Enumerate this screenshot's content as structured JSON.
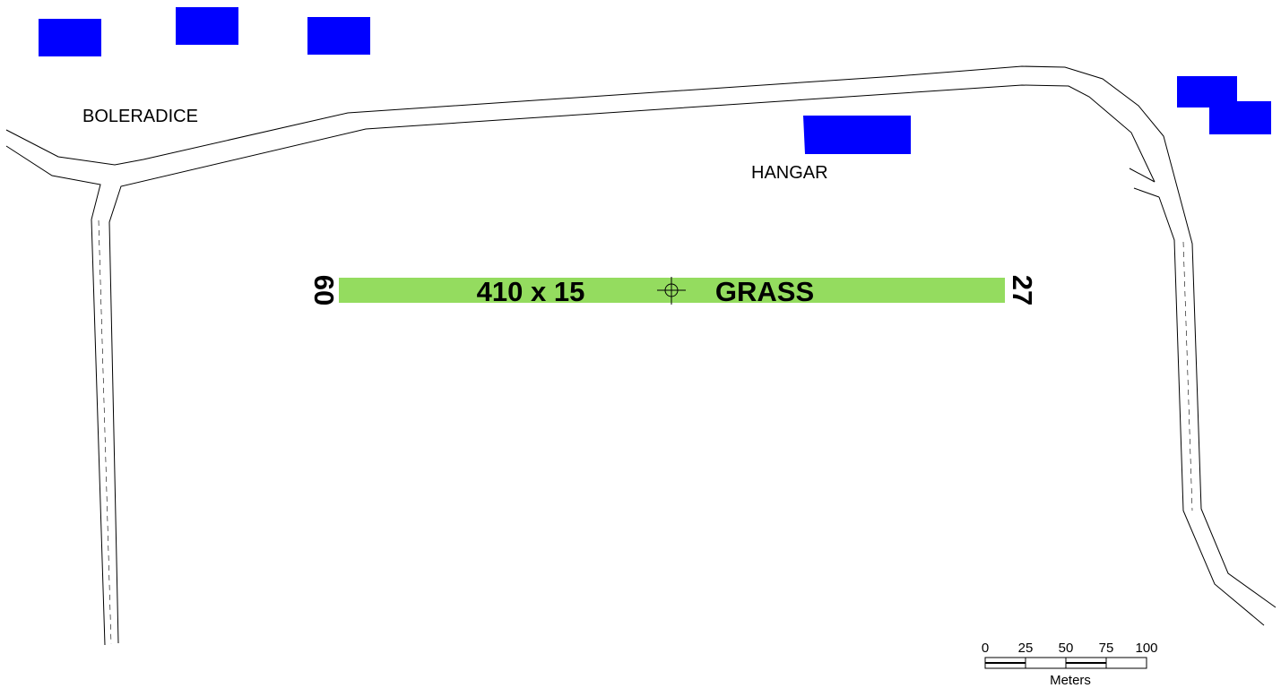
{
  "labels": {
    "town": "BOLERADICE",
    "hangar": "HANGAR"
  },
  "runway": {
    "dimensions": "410 x 15",
    "surface": "GRASS",
    "end_west": "09",
    "end_east": "27",
    "color": "#94dc5f"
  },
  "colors": {
    "building": "#0000ff",
    "road": "#000000"
  },
  "scale_bar": {
    "ticks": [
      "0",
      "25",
      "50",
      "75",
      "100"
    ],
    "unit": "Meters"
  }
}
